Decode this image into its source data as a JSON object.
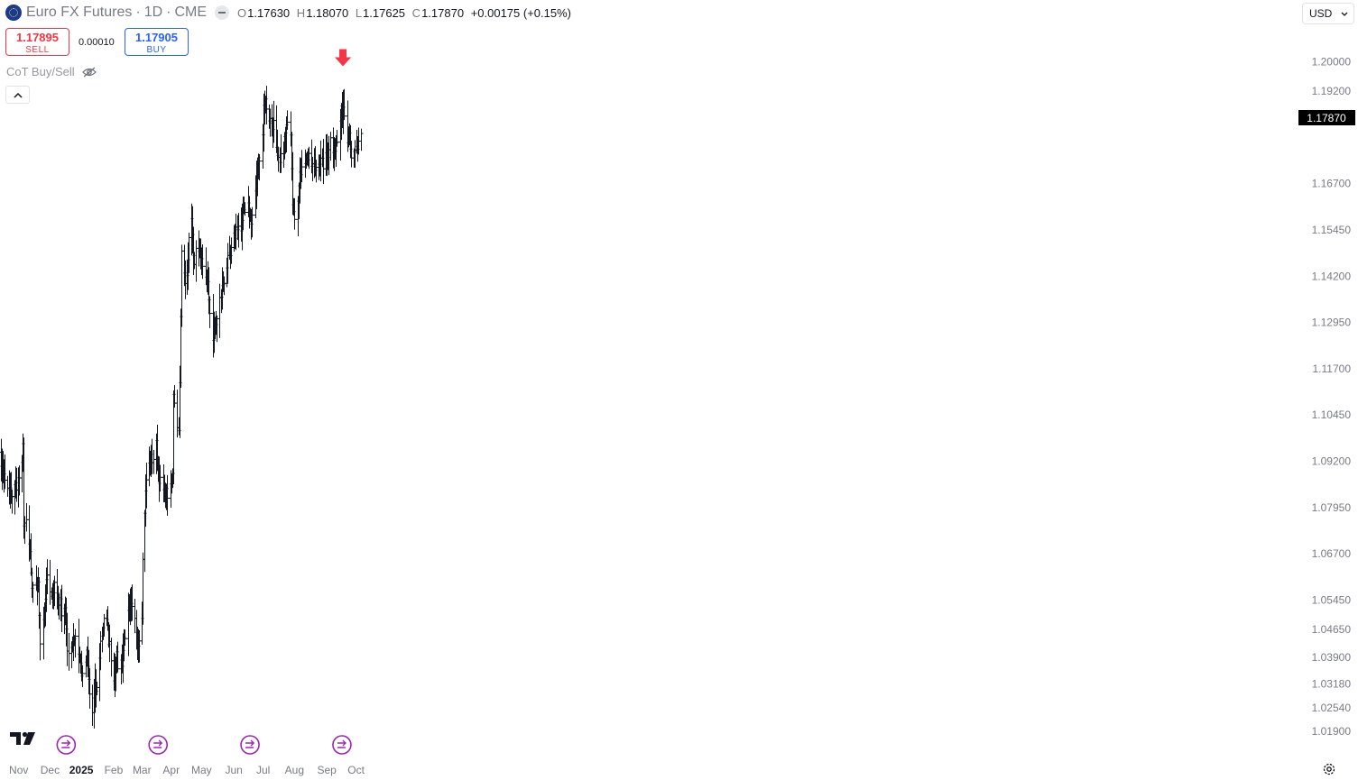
{
  "header": {
    "symbol_name": "Euro FX Futures",
    "interval": "1D",
    "exchange": "CME",
    "ohlc": {
      "open_label": "O",
      "open": "1.17630",
      "high_label": "H",
      "high": "1.18070",
      "low_label": "L",
      "low": "1.17625",
      "close_label": "C",
      "close": "1.17870",
      "change": "+0.00175 (+0.15%)"
    }
  },
  "trade": {
    "sell_price": "1.17895",
    "sell_label": "SELL",
    "spread": "0.00010",
    "buy_price": "1.17905",
    "buy_label": "BUY"
  },
  "indicator": {
    "name": "CoT Buy/Sell"
  },
  "currency": {
    "selected": "USD"
  },
  "icons": {
    "symbol_logo": "euro-flag-icon",
    "visibility": "eye-off-icon",
    "collapse": "chevron-up-icon",
    "currency_dropdown": "chevron-down-icon",
    "brand": "tradingview-logo-icon",
    "settings": "gear-icon",
    "event": "arrow-circle-icon",
    "signal": "red-arrow-down-icon"
  },
  "colors": {
    "bar": "#131722",
    "axis_text": "#787b86",
    "last_price_bg": "#000000",
    "signal_arrow": "#f23645",
    "event_marker": "#9c27b0",
    "sell": "#f23645",
    "buy": "#2962ff"
  },
  "chart_data": {
    "type": "ohlc",
    "ylim": [
      1.0134,
      1.2064
    ],
    "grid": false,
    "y_ticks": [
      "1.20000",
      "1.19200",
      "1.16700",
      "1.15450",
      "1.14200",
      "1.12950",
      "1.11700",
      "1.10450",
      "1.09200",
      "1.07950",
      "1.06700",
      "1.05450",
      "1.04650",
      "1.03900",
      "1.03180",
      "1.02540",
      "1.01900"
    ],
    "x_ticks": [
      {
        "label": "Nov",
        "date": "2024-11-01"
      },
      {
        "label": "Dec",
        "date": "2024-12-02"
      },
      {
        "label": "2025",
        "date": "2025-01-02"
      },
      {
        "label": "Feb",
        "date": "2025-02-03"
      },
      {
        "label": "Mar",
        "date": "2025-03-03"
      },
      {
        "label": "Apr",
        "date": "2025-04-01"
      },
      {
        "label": "May",
        "date": "2025-05-01"
      },
      {
        "label": "Jun",
        "date": "2025-06-02"
      },
      {
        "label": "Jul",
        "date": "2025-07-01"
      },
      {
        "label": "Aug",
        "date": "2025-08-01"
      },
      {
        "label": "Sep",
        "date": "2025-09-02"
      },
      {
        "label": "Oct",
        "date": "2025-10-01"
      }
    ],
    "last_price": "1.17870",
    "signal_arrow": {
      "date": "2025-09-18",
      "price": 1.1975
    },
    "event_markers": [
      "2024-12-18",
      "2025-03-19",
      "2025-06-18",
      "2025-09-17"
    ],
    "close_path": [
      [
        "2024-10-07",
        1.1
      ],
      [
        "2024-10-11",
        1.0935
      ],
      [
        "2024-10-16",
        1.0885
      ],
      [
        "2024-10-21",
        1.084
      ],
      [
        "2024-10-25",
        1.083
      ],
      [
        "2024-10-30",
        1.086
      ],
      [
        "2024-11-04",
        1.09
      ],
      [
        "2024-11-05",
        1.0955
      ],
      [
        "2024-11-06",
        1.076
      ],
      [
        "2024-11-08",
        1.0745
      ],
      [
        "2024-11-12",
        1.067
      ],
      [
        "2024-11-14",
        1.056
      ],
      [
        "2024-11-18",
        1.0595
      ],
      [
        "2024-11-20",
        1.058
      ],
      [
        "2024-11-22",
        1.044
      ],
      [
        "2024-11-25",
        1.05
      ],
      [
        "2024-11-27",
        1.0555
      ],
      [
        "2024-11-29",
        1.061
      ],
      [
        "2024-12-03",
        1.054
      ],
      [
        "2024-12-06",
        1.059
      ],
      [
        "2024-12-10",
        1.0555
      ],
      [
        "2024-12-13",
        1.052
      ],
      [
        "2024-12-17",
        1.053
      ],
      [
        "2024-12-19",
        1.039
      ],
      [
        "2024-12-23",
        1.043
      ],
      [
        "2024-12-27",
        1.045
      ],
      [
        "2024-12-31",
        1.039
      ],
      [
        "2025-01-03",
        1.033
      ],
      [
        "2025-01-07",
        1.0395
      ],
      [
        "2025-01-10",
        1.029
      ],
      [
        "2025-01-13",
        1.024
      ],
      [
        "2025-01-15",
        1.0305
      ],
      [
        "2025-01-17",
        1.03
      ],
      [
        "2025-01-21",
        1.043
      ],
      [
        "2025-01-24",
        1.05
      ],
      [
        "2025-01-27",
        1.048
      ],
      [
        "2025-01-30",
        1.042
      ],
      [
        "2025-02-03",
        1.033
      ],
      [
        "2025-02-05",
        1.04
      ],
      [
        "2025-02-07",
        1.037
      ],
      [
        "2025-02-11",
        1.038
      ],
      [
        "2025-02-13",
        1.044
      ],
      [
        "2025-02-17",
        1.05
      ],
      [
        "2025-02-20",
        1.052
      ],
      [
        "2025-02-24",
        1.0485
      ],
      [
        "2025-02-27",
        1.043
      ],
      [
        "2025-03-03",
        1.0515
      ],
      [
        "2025-03-04",
        1.065
      ],
      [
        "2025-03-05",
        1.079
      ],
      [
        "2025-03-07",
        1.087
      ],
      [
        "2025-03-11",
        1.092
      ],
      [
        "2025-03-14",
        1.093
      ],
      [
        "2025-03-17",
        1.096
      ],
      [
        "2025-03-19",
        1.09
      ],
      [
        "2025-03-21",
        1.086
      ],
      [
        "2025-03-25",
        1.083
      ],
      [
        "2025-03-27",
        1.083
      ],
      [
        "2025-03-31",
        1.084
      ],
      [
        "2025-04-02",
        1.088
      ],
      [
        "2025-04-03",
        1.111
      ],
      [
        "2025-04-08",
        1.1
      ],
      [
        "2025-04-10",
        1.13
      ],
      [
        "2025-04-11",
        1.148
      ],
      [
        "2025-04-15",
        1.14
      ],
      [
        "2025-04-17",
        1.148
      ],
      [
        "2025-04-21",
        1.159
      ],
      [
        "2025-04-23",
        1.146
      ],
      [
        "2025-04-25",
        1.148
      ],
      [
        "2025-04-29",
        1.147
      ],
      [
        "2025-05-02",
        1.145
      ],
      [
        "2025-05-06",
        1.142
      ],
      [
        "2025-05-09",
        1.133
      ],
      [
        "2025-05-12",
        1.125
      ],
      [
        "2025-05-14",
        1.129
      ],
      [
        "2025-05-16",
        1.13
      ],
      [
        "2025-05-20",
        1.137
      ],
      [
        "2025-05-22",
        1.14
      ],
      [
        "2025-05-26",
        1.145
      ],
      [
        "2025-05-29",
        1.147
      ],
      [
        "2025-06-02",
        1.152
      ],
      [
        "2025-06-05",
        1.156
      ],
      [
        "2025-06-09",
        1.154
      ],
      [
        "2025-06-12",
        1.16
      ],
      [
        "2025-06-16",
        1.162
      ],
      [
        "2025-06-19",
        1.156
      ],
      [
        "2025-06-23",
        1.165
      ],
      [
        "2025-06-26",
        1.173
      ],
      [
        "2025-06-30",
        1.181
      ],
      [
        "2025-07-01",
        1.188
      ],
      [
        "2025-07-03",
        1.189
      ],
      [
        "2025-07-08",
        1.184
      ],
      [
        "2025-07-11",
        1.183
      ],
      [
        "2025-07-15",
        1.173
      ],
      [
        "2025-07-17",
        1.172
      ],
      [
        "2025-07-21",
        1.177
      ],
      [
        "2025-07-24",
        1.182
      ],
      [
        "2025-07-28",
        1.182
      ],
      [
        "2025-07-30",
        1.163
      ],
      [
        "2025-08-01",
        1.159
      ],
      [
        "2025-08-05",
        1.166
      ],
      [
        "2025-08-08",
        1.173
      ],
      [
        "2025-08-13",
        1.174
      ],
      [
        "2025-08-18",
        1.172
      ],
      [
        "2025-08-21",
        1.171
      ],
      [
        "2025-08-25",
        1.174
      ],
      [
        "2025-08-28",
        1.172
      ],
      [
        "2025-09-02",
        1.174
      ],
      [
        "2025-09-05",
        1.179
      ],
      [
        "2025-09-09",
        1.176
      ],
      [
        "2025-09-12",
        1.178
      ],
      [
        "2025-09-16",
        1.186
      ],
      [
        "2025-09-18",
        1.188
      ],
      [
        "2025-09-22",
        1.18
      ],
      [
        "2025-09-24",
        1.181
      ],
      [
        "2025-09-26",
        1.175
      ],
      [
        "2025-09-29",
        1.174
      ],
      [
        "2025-10-01",
        1.176
      ],
      [
        "2025-10-06",
        1.1787
      ]
    ]
  }
}
